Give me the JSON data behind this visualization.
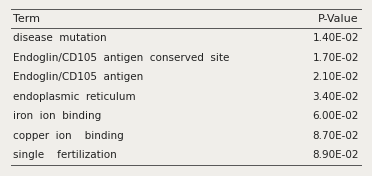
{
  "header": [
    "Term",
    "P-Value"
  ],
  "rows": [
    [
      "disease  mutation",
      "1.40E-02"
    ],
    [
      "Endoglin/CD105  antigen  conserved  site",
      "1.70E-02"
    ],
    [
      "Endoglin/CD105  antigen",
      "2.10E-02"
    ],
    [
      "endoplasmic  reticulum",
      "3.40E-02"
    ],
    [
      "iron  ion  binding",
      "6.00E-02"
    ],
    [
      "copper  ion    binding",
      "8.70E-02"
    ],
    [
      "single    fertilization",
      "8.90E-02"
    ]
  ],
  "background_color": "#f0eeea",
  "line_color": "#555555",
  "text_color": "#222222",
  "font_size": 7.5,
  "header_font_size": 8.0,
  "figsize": [
    3.72,
    1.76
  ],
  "dpi": 100
}
